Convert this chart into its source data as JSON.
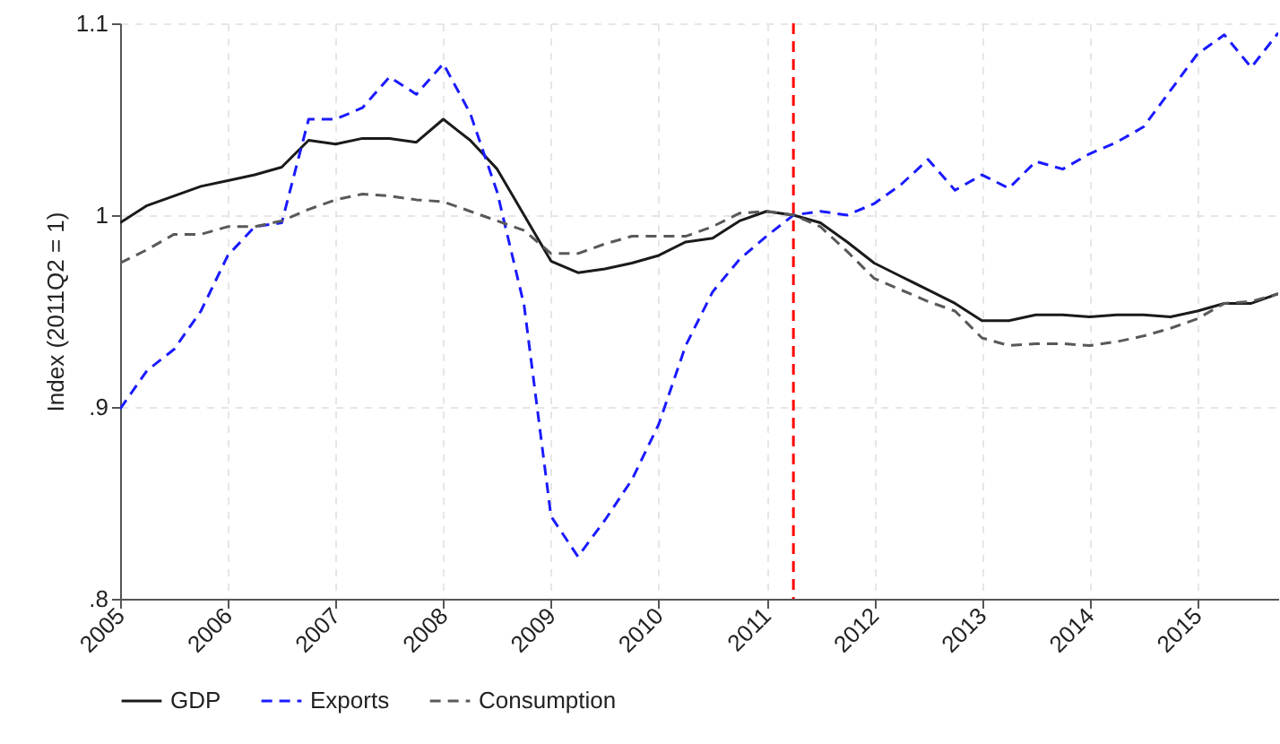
{
  "chart_data": {
    "type": "line",
    "ylabel": "Index (2011Q2 = 1)",
    "x": [
      2005,
      2005.25,
      2005.5,
      2005.75,
      2006,
      2006.25,
      2006.5,
      2006.75,
      2007,
      2007.25,
      2007.5,
      2007.75,
      2008,
      2008.25,
      2008.5,
      2008.75,
      2009,
      2009.25,
      2009.5,
      2009.75,
      2010,
      2010.25,
      2010.5,
      2010.75,
      2011,
      2011.25,
      2011.5,
      2011.75,
      2012,
      2012.25,
      2012.5,
      2012.75,
      2013,
      2013.25,
      2013.5,
      2013.75,
      2014,
      2014.25,
      2014.5,
      2014.75,
      2015,
      2015.25,
      2015.5,
      2015.75
    ],
    "series": [
      {
        "name": "GDP",
        "color": "#1a1a1a",
        "line_style": "solid",
        "values": [
          0.996,
          1.005,
          1.01,
          1.015,
          1.018,
          1.021,
          1.025,
          1.039,
          1.037,
          1.04,
          1.04,
          1.038,
          1.05,
          1.039,
          1.024,
          1.0,
          0.976,
          0.97,
          0.972,
          0.975,
          0.979,
          0.986,
          0.988,
          0.997,
          1.002,
          1.0,
          0.996,
          0.986,
          0.975,
          0.968,
          0.961,
          0.954,
          0.945,
          0.945,
          0.948,
          0.948,
          0.947,
          0.948,
          0.948,
          0.947,
          0.95,
          0.954,
          0.954,
          0.959
        ]
      },
      {
        "name": "Exports",
        "color": "#1a1aff",
        "line_style": "dashed",
        "values": [
          0.899,
          0.919,
          0.93,
          0.95,
          0.979,
          0.994,
          0.996,
          1.05,
          1.05,
          1.056,
          1.072,
          1.063,
          1.079,
          1.053,
          1.012,
          0.953,
          0.843,
          0.822,
          0.841,
          0.862,
          0.891,
          0.932,
          0.96,
          0.977,
          0.989,
          1.0,
          1.002,
          1.0,
          1.006,
          1.016,
          1.029,
          1.013,
          1.021,
          1.014,
          1.028,
          1.024,
          1.032,
          1.038,
          1.046,
          1.065,
          1.084,
          1.094,
          1.077,
          1.095
        ]
      },
      {
        "name": "Consumption",
        "color": "#595959",
        "line_style": "dashed",
        "values": [
          0.975,
          0.982,
          0.99,
          0.99,
          0.994,
          0.994,
          0.997,
          1.003,
          1.008,
          1.011,
          1.01,
          1.008,
          1.007,
          1.002,
          0.997,
          0.992,
          0.98,
          0.98,
          0.985,
          0.989,
          0.989,
          0.989,
          0.994,
          1.001,
          1.002,
          1.0,
          0.994,
          0.981,
          0.967,
          0.961,
          0.955,
          0.95,
          0.936,
          0.932,
          0.933,
          0.933,
          0.932,
          0.934,
          0.937,
          0.941,
          0.946,
          0.954,
          0.955,
          0.959
        ]
      }
    ],
    "xlim": [
      2005,
      2015.75
    ],
    "xticks": [
      2005,
      2006,
      2007,
      2008,
      2009,
      2010,
      2011,
      2012,
      2013,
      2014,
      2015
    ],
    "ylim": [
      0.8,
      1.1
    ],
    "yticks": [
      {
        "value": 0.8,
        "label": ".8"
      },
      {
        "value": 0.9,
        "label": ".9"
      },
      {
        "value": 1,
        "label": "1"
      },
      {
        "value": 1.1,
        "label": "1.1"
      }
    ],
    "grid": true,
    "legend": "bottom",
    "ref_lines": [
      {
        "axis": "x",
        "value": 2011.25,
        "color": "#ff0000",
        "line_style": "dashed"
      }
    ]
  }
}
